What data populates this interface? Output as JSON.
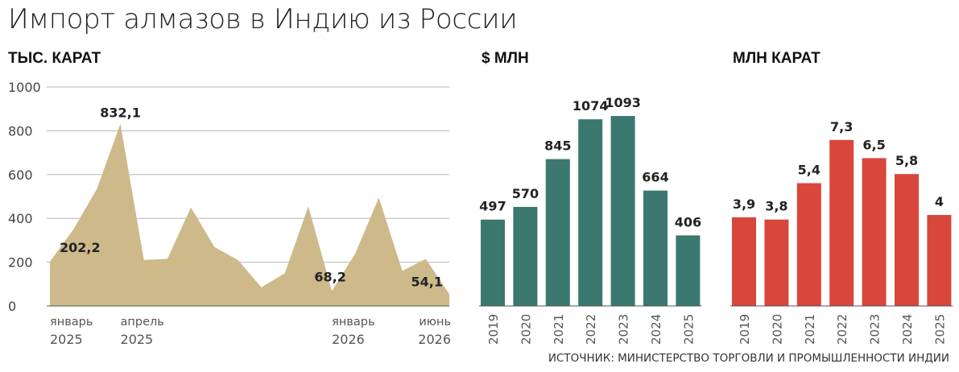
{
  "title": "Импорт алмазов в Индию из России",
  "source": "ИСТОЧНИК: МИНИСТЕРСТВО ТОРГОВЛИ И ПРОМЫШЛЕННОСТИ ИНДИИ",
  "colors": {
    "area": "#cdb98a",
    "teal": "#3a7870",
    "red": "#d8463c",
    "grid": "#b5b5b5",
    "axis": "#555555"
  },
  "chart_data": [
    {
      "type": "area",
      "title": "ТЫС. КАРАТ",
      "ylim": [
        0,
        1000
      ],
      "yticks": [
        "0",
        "200",
        "400",
        "600",
        "800",
        "1000"
      ],
      "x_labels": [
        {
          "index": 0,
          "month": "январь",
          "year": "2025"
        },
        {
          "index": 3,
          "month": "апрель",
          "year": "2025"
        },
        {
          "index": 12,
          "month": "январь",
          "year": "2026"
        },
        {
          "index": 17,
          "month": "июнь",
          "year": "2026"
        }
      ],
      "values": [
        202.2,
        350,
        535,
        832.1,
        210,
        215,
        450,
        270,
        210,
        85,
        150,
        455,
        68.2,
        240,
        495,
        160,
        215,
        54.1
      ],
      "annotations": [
        {
          "index": 0,
          "text": "202,2"
        },
        {
          "index": 3,
          "text": "832,1"
        },
        {
          "index": 12,
          "text": "68,2"
        },
        {
          "index": 17,
          "text": "54,1"
        }
      ]
    },
    {
      "type": "bar",
      "title": "$ МЛН",
      "categories": [
        "2019",
        "2020",
        "2021",
        "2022",
        "2023",
        "2024",
        "2025"
      ],
      "values": [
        497,
        570,
        845,
        1074,
        1093,
        664,
        406
      ],
      "labels": [
        "497",
        "570",
        "845",
        "1074",
        "1093",
        "664",
        "406"
      ],
      "ylim": [
        0,
        1260
      ]
    },
    {
      "type": "bar",
      "title": "МЛН КАРАТ",
      "categories": [
        "2019",
        "2020",
        "2021",
        "2022",
        "2023",
        "2024",
        "2025"
      ],
      "values": [
        3.9,
        3.8,
        5.4,
        7.3,
        6.5,
        5.8,
        4
      ],
      "labels": [
        "3,9",
        "3,8",
        "5,4",
        "7,3",
        "6,5",
        "5,8",
        "4"
      ],
      "ylim": [
        0,
        9.63
      ]
    }
  ]
}
